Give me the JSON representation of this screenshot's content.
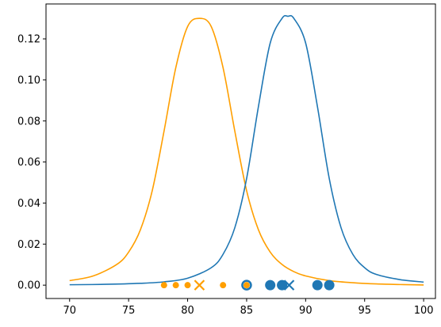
{
  "chart_data": {
    "type": "line",
    "title": "",
    "xlabel": "",
    "ylabel": "",
    "xlim": [
      68,
      101
    ],
    "ylim": [
      -0.0065,
      0.137
    ],
    "grid": false,
    "legend": "none",
    "x_ticks": [
      70,
      75,
      80,
      85,
      90,
      95,
      100
    ],
    "x_tick_labels": [
      "70",
      "75",
      "80",
      "85",
      "90",
      "95",
      "100"
    ],
    "y_ticks": [
      0.0,
      0.02,
      0.04,
      0.06,
      0.08,
      0.1,
      0.12
    ],
    "y_tick_labels": [
      "0.00",
      "0.02",
      "0.04",
      "0.06",
      "0.08",
      "0.10",
      "0.12"
    ],
    "series": [
      {
        "color": "#ff9f00",
        "x": [
          70,
          72,
          74,
          75,
          76,
          77,
          78,
          79,
          80,
          81,
          82,
          83,
          84,
          85,
          86,
          87,
          88,
          89,
          90,
          92,
          94,
          96,
          98,
          100
        ],
        "y": [
          0.0022,
          0.0045,
          0.0101,
          0.0161,
          0.027,
          0.046,
          0.075,
          0.106,
          0.126,
          0.13,
          0.126,
          0.106,
          0.075,
          0.046,
          0.027,
          0.0161,
          0.0101,
          0.0066,
          0.0045,
          0.0022,
          0.0012,
          0.0006,
          0.0003,
          0.0001
        ]
      },
      {
        "color": "#1f77b4",
        "x": [
          70,
          73,
          76,
          78,
          80,
          82,
          83,
          84,
          85,
          86,
          87,
          88,
          88.5,
          89,
          90,
          91,
          92,
          93,
          94,
          95,
          96,
          98,
          100
        ],
        "y": [
          0.0002,
          0.0004,
          0.0009,
          0.0016,
          0.0034,
          0.0085,
          0.015,
          0.028,
          0.052,
          0.087,
          0.118,
          0.13,
          0.131,
          0.13,
          0.118,
          0.087,
          0.052,
          0.028,
          0.015,
          0.0085,
          0.0052,
          0.0027,
          0.0015
        ]
      }
    ],
    "points": {
      "orange_dots": [
        78,
        79,
        80,
        83
      ],
      "orange_x": 81,
      "orange_ring": 85,
      "blue_dots": [
        87,
        88,
        91,
        92
      ],
      "blue_x": 88.6,
      "blue_ring": 85,
      "y": 0
    }
  }
}
